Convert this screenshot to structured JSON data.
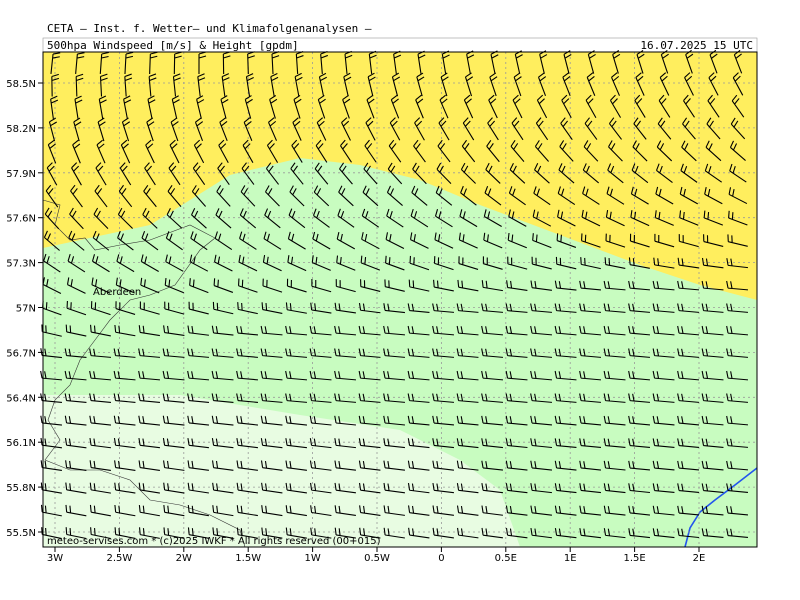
{
  "header": {
    "institute": "CETA – Inst. f. Wetter– und Klimafolgenanalysen –",
    "product": "500hpa Windspeed [m/s] & Height [gpdm]",
    "valid_time": "16.07.2025 15 UTC"
  },
  "axes": {
    "y_labels": [
      "58.5N",
      "58.2N",
      "57.9N",
      "57.6N",
      "57.3N",
      "57N",
      "56.7N",
      "56.4N",
      "56.1N",
      "55.8N",
      "55.5N"
    ],
    "x_labels": [
      "3W",
      "2.5W",
      "2W",
      "1.5W",
      "1W",
      "0.5W",
      "0",
      "0.5E",
      "1E",
      "1.5E",
      "2E"
    ]
  },
  "places": [
    {
      "label": "Aberdeen"
    }
  ],
  "footer": "meteo-servises.com * (c)2025 IWKF * All rights reserved (00+015)"
}
